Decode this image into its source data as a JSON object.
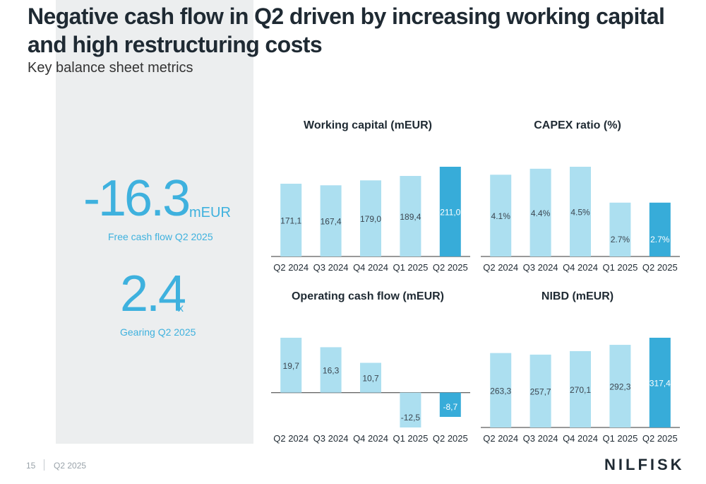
{
  "slide": {
    "title": "Negative cash flow in Q2 driven by increasing working capital and high restructuring costs",
    "subtitle": "Key balance sheet metrics"
  },
  "kpis": {
    "fcf_value": "-16.3",
    "fcf_unit": "mEUR",
    "fcf_label": "Free cash flow Q2 2025",
    "gearing_value": "2.4",
    "gearing_unit": "x",
    "gearing_label": "Gearing Q2 2025"
  },
  "footer": {
    "page_number": "15",
    "period": "Q2 2025",
    "logo": "NILFISK"
  },
  "colors": {
    "bar_light": "#acdff0",
    "bar_highlight": "#37acd9",
    "kpi": "#3eb1de"
  },
  "chart_data": [
    {
      "id": "wc",
      "type": "bar",
      "title": "Working capital (mEUR)",
      "categories": [
        "Q2 2024",
        "Q3 2024",
        "Q4 2024",
        "Q1 2025",
        "Q2 2025"
      ],
      "values": [
        171.1,
        167.4,
        179.0,
        189.4,
        211.0
      ],
      "labels": [
        "171,1",
        "167,4",
        "179,0",
        "189,4",
        "211,0"
      ],
      "highlight_index": 4,
      "ylim": [
        0,
        211
      ]
    },
    {
      "id": "capex",
      "type": "bar",
      "title": "CAPEX ratio (%)",
      "categories": [
        "Q2 2024",
        "Q3 2024",
        "Q4 2024",
        "Q1 2025",
        "Q2 2025"
      ],
      "values": [
        4.1,
        4.4,
        4.5,
        2.7,
        2.7
      ],
      "labels": [
        "4.1%",
        "4.4%",
        "4.5%",
        "2.7%",
        "2.7%"
      ],
      "highlight_index": 4,
      "ylim": [
        0,
        4.5
      ]
    },
    {
      "id": "ocf",
      "type": "bar",
      "title": "Operating cash flow (mEUR)",
      "categories": [
        "Q2 2024",
        "Q3 2024",
        "Q4 2024",
        "Q1 2025",
        "Q2 2025"
      ],
      "values": [
        19.7,
        16.3,
        10.7,
        -12.5,
        -8.7
      ],
      "labels": [
        "19,7",
        "16,3",
        "10,7",
        "-12,5",
        "-8,7"
      ],
      "highlight_index": 4,
      "ylim": [
        -12.5,
        19.7
      ]
    },
    {
      "id": "nibd",
      "type": "bar",
      "title": "NIBD (mEUR)",
      "categories": [
        "Q2 2024",
        "Q3 2024",
        "Q4 2024",
        "Q1 2025",
        "Q2 2025"
      ],
      "values": [
        263.3,
        257.7,
        270.1,
        292.3,
        317.4
      ],
      "labels": [
        "263,3",
        "257,7",
        "270,1",
        "292,3",
        "317,4"
      ],
      "highlight_index": 4,
      "ylim": [
        0,
        317.4
      ]
    }
  ]
}
